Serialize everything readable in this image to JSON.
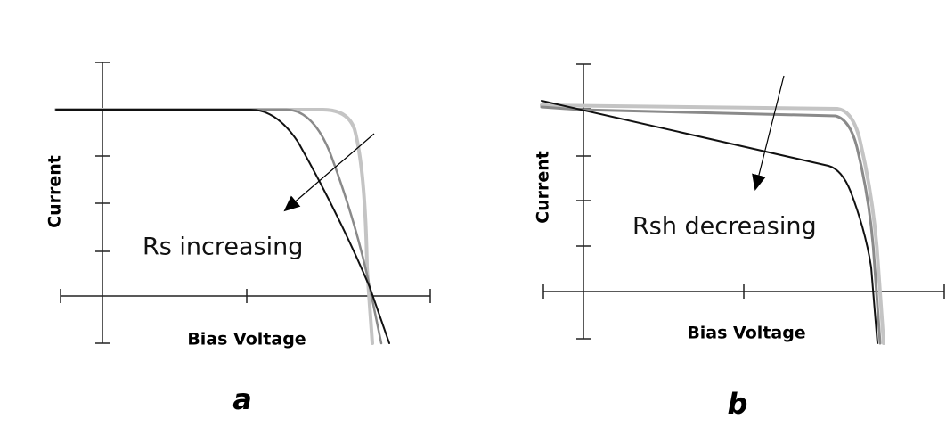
{
  "panels": [
    {
      "y_label": "Current",
      "x_label": "Bias Voltage",
      "annotation": "Rs increasing",
      "caption": "a"
    },
    {
      "y_label": "Current",
      "x_label": "Bias Voltage",
      "annotation": "Rsh decreasing",
      "caption": "b"
    }
  ]
}
